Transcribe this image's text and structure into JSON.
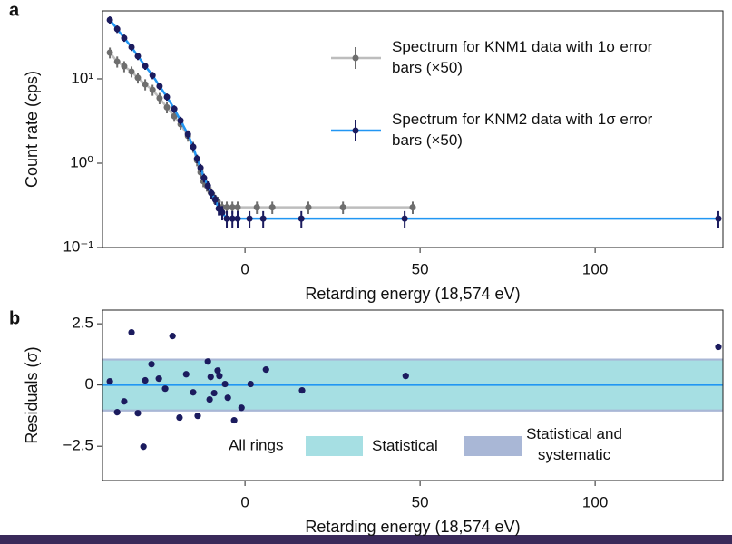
{
  "chart_data": [
    {
      "type": "line",
      "panel_label": "a",
      "ylabel": "Count rate (cps)",
      "xlabel": "Retarding energy (18,574 eV)",
      "log_y": true,
      "legend": "upper right",
      "xlim": [
        -40.7,
        136.5
      ],
      "xticks": [
        0,
        50,
        100
      ],
      "ylim": [
        0.1,
        64
      ],
      "yticks": [
        {
          "value": 0.1,
          "label": "10⁻¹"
        },
        {
          "value": 1,
          "label": "10⁰"
        },
        {
          "value": 10,
          "label": "10¹"
        }
      ],
      "series": [
        {
          "name": "Spectrum for KNM1 data with 1σ error bars (×50)",
          "color": "#6e6e6e",
          "line_color": "#bdbdbd",
          "x": [
            -38.6,
            -36.5,
            -34.5,
            -32.4,
            -30.6,
            -28.5,
            -26.4,
            -24.4,
            -22.3,
            -20.2,
            -18.4,
            -16.3,
            -14.8,
            -13.7,
            -12.7,
            -11.9,
            -10.9,
            -9.8,
            -8.8,
            -7.8,
            -6.5,
            -5.2,
            -3.6,
            -2.1,
            3.4,
            7.8,
            18.1,
            28,
            47.9
          ],
          "values": [
            20.5,
            16,
            14.1,
            12.2,
            10.3,
            8.6,
            7.4,
            5.9,
            4.6,
            3.6,
            2.9,
            2.1,
            1.56,
            1.08,
            0.78,
            0.61,
            0.54,
            0.45,
            0.39,
            0.35,
            0.3,
            0.3,
            0.3,
            0.3,
            0.3,
            0.3,
            0.3,
            0.3,
            0.3
          ],
          "errors": [
            3,
            2.4,
            2.1,
            1.8,
            1.5,
            1.3,
            1.1,
            0.9,
            0.7,
            0.5,
            0.4,
            0.3,
            0.23,
            0.16,
            0.12,
            0.09,
            0.08,
            0.07,
            0.06,
            0.05,
            0.05,
            0.05,
            0.05,
            0.05,
            0.05,
            0.05,
            0.05,
            0.05,
            0.05
          ]
        },
        {
          "name": "Spectrum for KNM2 data with 1σ error bars (×50)",
          "color": "#1b1b5e",
          "line_color": "#2196f3",
          "x": [
            -38.6,
            -36.5,
            -34.5,
            -32.4,
            -30.6,
            -28.5,
            -26.4,
            -24.4,
            -22.3,
            -20.2,
            -18.4,
            -16.3,
            -14.8,
            -13.7,
            -12.7,
            -11.7,
            -10.6,
            -9.6,
            -8.5,
            -7.5,
            -6.5,
            -5.2,
            -3.6,
            -2.1,
            1.3,
            5.2,
            16.1,
            45.6,
            135.2
          ],
          "values": [
            50,
            39,
            30.5,
            23.8,
            18.6,
            14.2,
            11,
            8.2,
            6.1,
            4.4,
            3.2,
            2.2,
            1.56,
            1.13,
            0.88,
            0.67,
            0.54,
            0.44,
            0.37,
            0.29,
            0.26,
            0.22,
            0.22,
            0.22,
            0.22,
            0.22,
            0.22,
            0.22,
            0.22
          ],
          "errors": [
            5,
            4,
            3,
            2.4,
            1.9,
            1.4,
            1.1,
            0.8,
            0.6,
            0.45,
            0.35,
            0.25,
            0.18,
            0.13,
            0.1,
            0.08,
            0.07,
            0.06,
            0.05,
            0.05,
            0.05,
            0.05,
            0.05,
            0.05,
            0.05,
            0.05,
            0.05,
            0.05,
            0.05
          ]
        }
      ]
    },
    {
      "type": "scatter",
      "panel_label": "b",
      "ylabel": "Residuals (σ)",
      "xlabel": "Retarding energy (18,574 eV)",
      "legend_title": "All rings",
      "xlim": [
        -40.7,
        136.5
      ],
      "xticks": [
        0,
        50,
        100
      ],
      "ylim": [
        -3.9,
        3.06
      ],
      "yticks": [
        {
          "value": -2.5,
          "label": "−2.5"
        },
        0,
        2.5
      ],
      "zero_line": {
        "value": 0,
        "color": "#2196f3"
      },
      "bands": [
        {
          "name": "Statistical and systematic",
          "color": "#a9b7d6",
          "x": [
            -40.7,
            136.5
          ],
          "lower": [
            -1.08,
            -1.08
          ],
          "upper": [
            1.08,
            1.08
          ]
        },
        {
          "name": "Statistical",
          "color": "#a6dfe3",
          "x": [
            -40.7,
            136.5
          ],
          "lower": [
            -1,
            -1
          ],
          "upper": [
            1,
            1
          ]
        }
      ],
      "series": [
        {
          "color": "#1b1b5e",
          "x": [
            -38.6,
            -36.5,
            -34.5,
            -32.4,
            -30.6,
            -29.0,
            -28.5,
            -26.7,
            -24.6,
            -22.8,
            -20.7,
            -18.7,
            -16.8,
            -14.8,
            -13.5,
            -10.6,
            -10.1,
            -9.8,
            -8.8,
            -7.8,
            -7.3,
            -5.7,
            -4.9,
            -3.1,
            -1.0,
            1.6,
            6.0,
            16.3,
            45.9,
            135.2
          ],
          "values": [
            0.15,
            -1.11,
            -0.67,
            2.15,
            -1.15,
            -2.52,
            0.19,
            0.85,
            0.26,
            -0.15,
            2.0,
            -1.33,
            0.44,
            -0.3,
            -1.26,
            0.96,
            -0.59,
            0.33,
            -0.33,
            0.59,
            0.37,
            0.04,
            -0.52,
            -1.44,
            -0.93,
            0.04,
            0.63,
            -0.22,
            0.37,
            1.56
          ]
        }
      ]
    }
  ]
}
